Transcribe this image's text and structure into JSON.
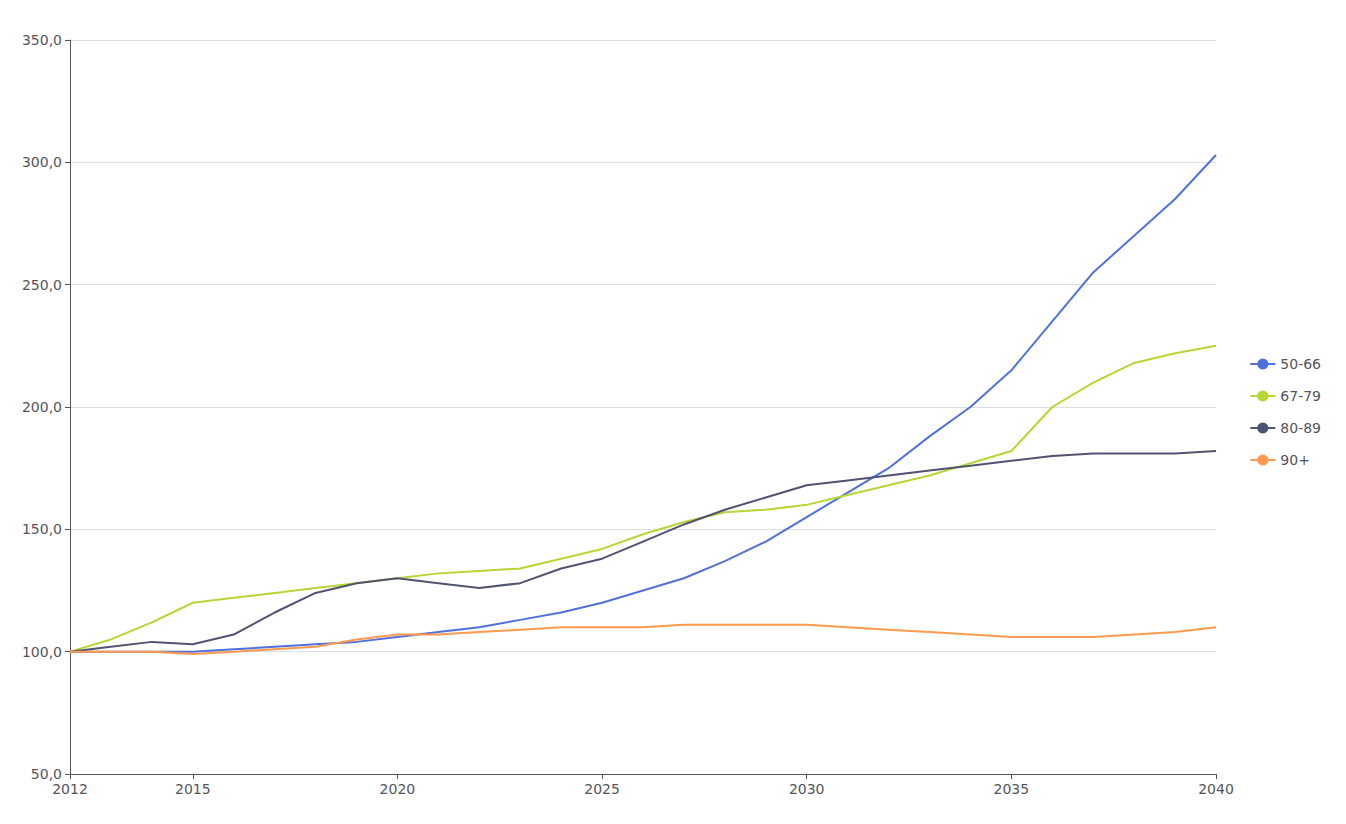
{
  "chart_data": {
    "type": "line",
    "x": [
      2012,
      2013,
      2014,
      2015,
      2016,
      2017,
      2018,
      2019,
      2020,
      2021,
      2022,
      2023,
      2024,
      2025,
      2026,
      2027,
      2028,
      2029,
      2030,
      2031,
      2032,
      2033,
      2034,
      2035,
      2036,
      2037,
      2038,
      2039,
      2040
    ],
    "series": [
      {
        "name": "50-66",
        "values": [
          100,
          100,
          100,
          100,
          101,
          102,
          103,
          104,
          106,
          108,
          110,
          113,
          116,
          120,
          125,
          130,
          137,
          145,
          155,
          165,
          175,
          188,
          200,
          215,
          235,
          255,
          270,
          285,
          303
        ]
      },
      {
        "name": "67-79",
        "values": [
          100,
          105,
          112,
          120,
          122,
          124,
          126,
          128,
          130,
          132,
          133,
          134,
          138,
          142,
          148,
          153,
          157,
          158,
          160,
          164,
          168,
          172,
          177,
          182,
          200,
          210,
          218,
          222,
          225
        ]
      },
      {
        "name": "80-89",
        "values": [
          100,
          102,
          104,
          103,
          107,
          116,
          124,
          128,
          130,
          128,
          126,
          128,
          134,
          138,
          145,
          152,
          158,
          163,
          168,
          170,
          172,
          174,
          176,
          178,
          180,
          181,
          181,
          181,
          182
        ]
      },
      {
        "name": "90+",
        "values": [
          100,
          100,
          100,
          99,
          100,
          101,
          102,
          105,
          107,
          107,
          108,
          109,
          110,
          110,
          110,
          111,
          111,
          111,
          111,
          110,
          109,
          108,
          107,
          106,
          106,
          106,
          107,
          108,
          110
        ]
      }
    ],
    "xlim": [
      2012,
      2040
    ],
    "xticks": [
      2012,
      2015,
      2020,
      2025,
      2030,
      2035,
      2040
    ],
    "ylim": [
      50,
      350
    ],
    "yticks": [
      {
        "value": 50,
        "label": "50,0"
      },
      {
        "value": 100,
        "label": "100,0"
      },
      {
        "value": 150,
        "label": "150,0"
      },
      {
        "value": 200,
        "label": "200,0"
      },
      {
        "value": 250,
        "label": "250,0"
      },
      {
        "value": 300,
        "label": "300,0"
      },
      {
        "value": 350,
        "label": "350,0"
      }
    ],
    "grid": "y",
    "legend": "right"
  }
}
